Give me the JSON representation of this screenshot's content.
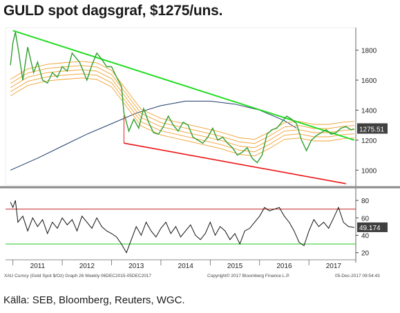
{
  "title": "GULD spot dagsgraf, $1275/uns.",
  "source": "Källa: SEB, Bloomberg, Reuters, WGC.",
  "footer": {
    "left": "XAU Curncy (Gold Spot  $/Oz) Graph 26  Weekly 06DEC2015-05DEC2017",
    "center": "Copyright© 2017 Bloomberg Finance L.P.",
    "right": "05-Dec-2017 09:54:43"
  },
  "colors": {
    "price": "#2e9e2e",
    "trend_down": "#22dd22",
    "support": "#ee1111",
    "long_ma": "#1f3a6b",
    "bands": "#f0a030",
    "rsi": "#111111",
    "rsi_upper": "#c02020",
    "rsi_lower": "#22cc22",
    "label_box": "#404040"
  },
  "chart_data": [
    {
      "type": "line",
      "name": "price-panel",
      "ylim": [
        900,
        1950
      ],
      "xlim": [
        2010.85,
        2017.95
      ],
      "y_ticks": [
        1000,
        1200,
        1400,
        1600,
        1800
      ],
      "x_ticks": [
        "2011",
        "2012",
        "2013",
        "2014",
        "2015",
        "2016",
        "2017"
      ],
      "last_value": "1275.51",
      "price": {
        "x": [
          2010.95,
          2011.0,
          2011.05,
          2011.12,
          2011.2,
          2011.3,
          2011.42,
          2011.5,
          2011.6,
          2011.7,
          2011.8,
          2011.9,
          2012.0,
          2012.1,
          2012.2,
          2012.35,
          2012.5,
          2012.6,
          2012.7,
          2012.8,
          2012.9,
          2013.0,
          2013.1,
          2013.2,
          2013.25,
          2013.35,
          2013.45,
          2013.55,
          2013.65,
          2013.75,
          2013.85,
          2013.95,
          2014.05,
          2014.15,
          2014.25,
          2014.35,
          2014.45,
          2014.55,
          2014.65,
          2014.75,
          2014.85,
          2014.95,
          2015.05,
          2015.15,
          2015.25,
          2015.35,
          2015.45,
          2015.55,
          2015.65,
          2015.75,
          2015.85,
          2015.95,
          2016.05,
          2016.15,
          2016.25,
          2016.35,
          2016.45,
          2016.55,
          2016.65,
          2016.75,
          2016.85,
          2016.95,
          2017.05,
          2017.15,
          2017.25,
          2017.35,
          2017.45,
          2017.55,
          2017.65,
          2017.75,
          2017.85,
          2017.92
        ],
        "values": [
          1700,
          1850,
          1920,
          1780,
          1600,
          1820,
          1650,
          1720,
          1600,
          1580,
          1650,
          1620,
          1690,
          1660,
          1780,
          1720,
          1600,
          1700,
          1780,
          1740,
          1690,
          1690,
          1620,
          1560,
          1380,
          1260,
          1340,
          1280,
          1410,
          1320,
          1250,
          1240,
          1290,
          1360,
          1300,
          1260,
          1320,
          1300,
          1220,
          1200,
          1180,
          1220,
          1280,
          1200,
          1220,
          1180,
          1150,
          1100,
          1120,
          1150,
          1080,
          1050,
          1100,
          1240,
          1270,
          1280,
          1320,
          1360,
          1340,
          1310,
          1200,
          1130,
          1200,
          1230,
          1250,
          1270,
          1240,
          1250,
          1280,
          1290,
          1270,
          1275
        ]
      },
      "long_ma": {
        "x": [
          2010.95,
          2011.5,
          2012.0,
          2012.5,
          2013.0,
          2013.5,
          2014.0,
          2014.5,
          2015.0,
          2015.5,
          2016.0,
          2016.5,
          2016.75
        ],
        "values": [
          1000,
          1080,
          1160,
          1240,
          1310,
          1380,
          1430,
          1460,
          1460,
          1440,
          1400,
          1330,
          1280
        ]
      },
      "band_mid": {
        "x": [
          2010.95,
          2011.3,
          2011.7,
          2012.0,
          2012.4,
          2012.7,
          2013.0,
          2013.3,
          2013.6,
          2014.0,
          2014.4,
          2014.8,
          2015.2,
          2015.6,
          2015.9,
          2016.2,
          2016.5,
          2016.8,
          2017.1,
          2017.4,
          2017.7,
          2017.92
        ],
        "values": [
          1550,
          1620,
          1650,
          1660,
          1670,
          1660,
          1610,
          1480,
          1350,
          1290,
          1260,
          1230,
          1200,
          1160,
          1150,
          1200,
          1260,
          1270,
          1250,
          1250,
          1265,
          1270
        ]
      },
      "trend_down": {
        "x": [
          2011.0,
          2017.92
        ],
        "values": [
          1930,
          1200
        ]
      },
      "support": {
        "x": [
          2013.25,
          2017.75
        ],
        "values": [
          1180,
          910
        ]
      }
    },
    {
      "type": "line",
      "name": "rsi-panel",
      "ylim": [
        15,
        88
      ],
      "y_ticks": [
        20,
        40,
        60,
        80
      ],
      "upper_level": 70,
      "lower_level": 30,
      "last_value": "49.174",
      "rsi": {
        "x": [
          2010.95,
          2011.0,
          2011.05,
          2011.1,
          2011.2,
          2011.3,
          2011.4,
          2011.5,
          2011.6,
          2011.7,
          2011.8,
          2011.9,
          2012.0,
          2012.1,
          2012.2,
          2012.3,
          2012.4,
          2012.5,
          2012.6,
          2012.7,
          2012.8,
          2012.9,
          2013.0,
          2013.1,
          2013.2,
          2013.3,
          2013.4,
          2013.5,
          2013.6,
          2013.7,
          2013.8,
          2013.9,
          2014.0,
          2014.1,
          2014.2,
          2014.3,
          2014.4,
          2014.5,
          2014.6,
          2014.7,
          2014.8,
          2014.9,
          2015.0,
          2015.1,
          2015.2,
          2015.3,
          2015.4,
          2015.5,
          2015.6,
          2015.7,
          2015.8,
          2015.9,
          2016.0,
          2016.1,
          2016.2,
          2016.3,
          2016.4,
          2016.5,
          2016.6,
          2016.7,
          2016.8,
          2016.9,
          2017.0,
          2017.1,
          2017.2,
          2017.3,
          2017.4,
          2017.5,
          2017.6,
          2017.7,
          2017.8,
          2017.92
        ],
        "values": [
          78,
          72,
          80,
          55,
          62,
          45,
          60,
          50,
          58,
          42,
          55,
          48,
          60,
          52,
          58,
          45,
          62,
          55,
          48,
          60,
          50,
          45,
          42,
          38,
          30,
          20,
          35,
          50,
          40,
          55,
          45,
          38,
          48,
          55,
          42,
          50,
          38,
          45,
          52,
          40,
          35,
          42,
          55,
          40,
          50,
          45,
          35,
          42,
          30,
          45,
          48,
          55,
          62,
          72,
          68,
          70,
          72,
          62,
          55,
          45,
          32,
          28,
          45,
          58,
          50,
          55,
          48,
          60,
          72,
          55,
          50,
          49
        ]
      }
    }
  ]
}
